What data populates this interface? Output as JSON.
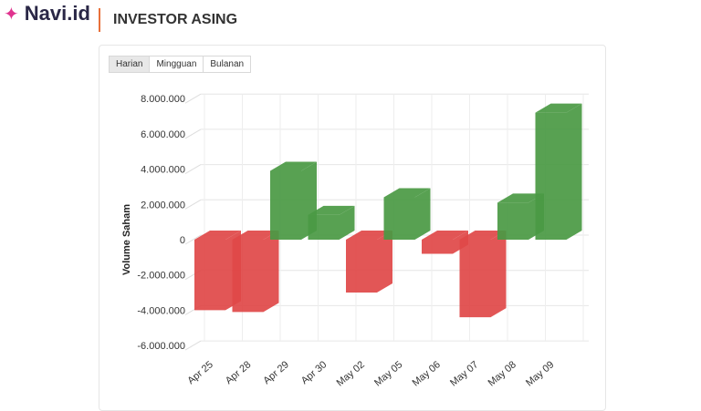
{
  "brand": {
    "name": "Navi.id",
    "icon": "sparkle-icon"
  },
  "header": {
    "title": "INVESTOR ASING"
  },
  "tabs": [
    {
      "label": "Harian",
      "active": true
    },
    {
      "label": "Mingguan"
    },
    {
      "label": "Bulanan"
    }
  ],
  "chart_data": {
    "type": "bar",
    "title": "",
    "ylabel": "Volume Saham",
    "xlabel": "",
    "ylim": [
      -6000000,
      8000000
    ],
    "yticks": [
      8000000,
      6000000,
      4000000,
      2000000,
      0,
      -2000000,
      -4000000,
      -6000000
    ],
    "ytick_labels": [
      "8.000.000",
      "6.000.000",
      "4.000.000",
      "2.000.000",
      "0",
      "-2.000.000",
      "-4.000.000",
      "-6.000.000"
    ],
    "categories": [
      "Apr 25",
      "Apr 28",
      "Apr 29",
      "Apr 30",
      "May 02",
      "May 05",
      "May 06",
      "May 07",
      "May 08",
      "May 09"
    ],
    "values": [
      -4000000,
      -4100000,
      3900000,
      1400000,
      -3000000,
      2400000,
      -800000,
      -4400000,
      2100000,
      7200000
    ],
    "colors": {
      "positive": "#4a9a44",
      "negative": "#e04848"
    },
    "grid": true,
    "legend": "none",
    "style": "3d"
  }
}
